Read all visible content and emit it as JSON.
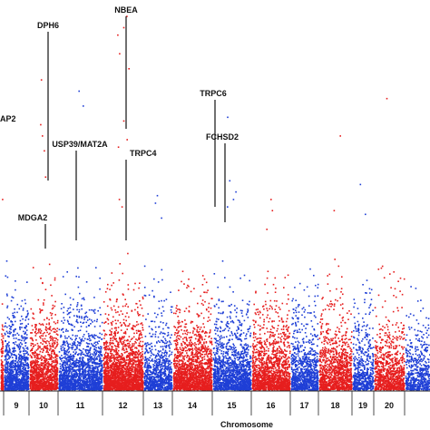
{
  "chart_data": {
    "type": "scatter",
    "subtype": "manhattan",
    "xlabel": "Chromosome",
    "ylabel": "",
    "title": "",
    "series_colors": [
      "#1f3fd6",
      "#e61e1e"
    ],
    "chromosomes": [
      {
        "label": "",
        "color": "#e61e1e",
        "max_y": 2.4,
        "density": 1.0
      },
      {
        "label": "9",
        "color": "#1f3fd6",
        "max_y": 3.9,
        "density": 1.0
      },
      {
        "label": "10",
        "color": "#e61e1e",
        "max_y": 4.3,
        "density": 1.0
      },
      {
        "label": "11",
        "color": "#1f3fd6",
        "max_y": 3.9,
        "density": 0.9
      },
      {
        "label": "12",
        "color": "#e61e1e",
        "max_y": 4.6,
        "density": 1.2
      },
      {
        "label": "13",
        "color": "#1f3fd6",
        "max_y": 3.4,
        "density": 0.7
      },
      {
        "label": "14",
        "color": "#e61e1e",
        "max_y": 3.6,
        "density": 1.0
      },
      {
        "label": "15",
        "color": "#1f3fd6",
        "max_y": 3.7,
        "density": 0.9
      },
      {
        "label": "16",
        "color": "#e61e1e",
        "max_y": 3.2,
        "density": 0.9
      },
      {
        "label": "17",
        "color": "#1f3fd6",
        "max_y": 3.3,
        "density": 0.8
      },
      {
        "label": "18",
        "color": "#e61e1e",
        "max_y": 3.6,
        "density": 0.8
      },
      {
        "label": "19",
        "color": "#1f3fd6",
        "max_y": 3.2,
        "density": 0.6
      },
      {
        "label": "20",
        "color": "#e61e1e",
        "max_y": 3.4,
        "density": 0.7
      },
      {
        "label": "",
        "color": "#1f3fd6",
        "max_y": 2.8,
        "density": 0.5
      }
    ],
    "peaks": [
      {
        "chrom": 2,
        "y": [
          8.3,
          7.1,
          6.8,
          6.4,
          5.7
        ]
      },
      {
        "chrom": 3,
        "y": [
          8.0,
          7.6
        ]
      },
      {
        "chrom": 4,
        "y": [
          10.0,
          9.7,
          9.5,
          9.0,
          8.6,
          7.2,
          6.7,
          6.5,
          5.1,
          4.9
        ]
      },
      {
        "chrom": 5,
        "y": [
          5.2,
          5.0,
          4.6
        ]
      },
      {
        "chrom": 7,
        "y": [
          7.3,
          5.6,
          5.3,
          5.1,
          4.9
        ]
      },
      {
        "chrom": 8,
        "y": [
          5.1,
          4.8,
          4.3
        ]
      },
      {
        "chrom": 10,
        "y": [
          6.8,
          4.8
        ]
      },
      {
        "chrom": 11,
        "y": [
          5.5,
          4.7
        ]
      },
      {
        "chrom": 12,
        "y": [
          7.8
        ]
      },
      {
        "chrom": 0,
        "y": [
          5.1
        ]
      }
    ],
    "annotations": [
      {
        "text": "DPH6",
        "chrom": 2,
        "y_top": 9.5,
        "y_bottom": 5.6
      },
      {
        "text": "NBEA",
        "chrom": 4,
        "y_top": 9.6,
        "y_bottom": 7.0
      },
      {
        "text": "USP39/MAT2A",
        "chrom": 3,
        "y_top": 6.6,
        "y_bottom": 4.0
      },
      {
        "text": "TRPC4",
        "chrom": 4,
        "y_top": 6.6,
        "y_bottom": 4.0
      },
      {
        "text": "TRPC6",
        "chrom": 7,
        "y_top": 7.5,
        "y_bottom": 4.9
      },
      {
        "text": "FCHSD2",
        "chrom": 8,
        "y_top": 6.8,
        "y_bottom": 4.5
      },
      {
        "text": "MDGA2",
        "chrom": 2,
        "y_top": 4.9,
        "y_bottom": 3.8
      },
      {
        "text": "AP2",
        "chrom": 0,
        "y_top": 7.4,
        "y_bottom": 7.4
      }
    ],
    "ylim": [
      0,
      10.3
    ],
    "grid": false,
    "legend": "none"
  }
}
